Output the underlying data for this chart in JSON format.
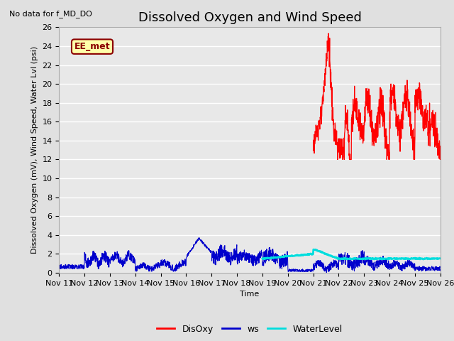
{
  "title": "Dissolved Oxygen and Wind Speed",
  "no_data_text": "No data for f_MD_DO",
  "ylabel": "Dissolved Oxygen (mV), Wind Speed, Water Lvl (psi)",
  "xlabel": "Time",
  "ylim": [
    0,
    26
  ],
  "yticks": [
    0,
    2,
    4,
    6,
    8,
    10,
    12,
    14,
    16,
    18,
    20,
    22,
    24,
    26
  ],
  "xlim_start": 0,
  "xlim_end": 15,
  "xtick_labels": [
    "Nov 11",
    "Nov 12",
    "Nov 13",
    "Nov 14",
    "Nov 15",
    "Nov 16",
    "Nov 17",
    "Nov 18",
    "Nov 19",
    "Nov 20",
    "Nov 21",
    "Nov 22",
    "Nov 23",
    "Nov 24",
    "Nov 25",
    "Nov 26"
  ],
  "bg_color": "#e0e0e0",
  "plot_bg_color": "#e8e8e8",
  "ee_met_label": "EE_met",
  "ee_met_bg": "#ffffaa",
  "ee_met_border": "#8b0000",
  "legend_items": [
    "DisOxy",
    "ws",
    "WaterLevel"
  ],
  "legend_colors": [
    "#ff0000",
    "#0000cc",
    "#00dddd"
  ],
  "title_fontsize": 13,
  "label_fontsize": 8,
  "tick_fontsize": 8
}
